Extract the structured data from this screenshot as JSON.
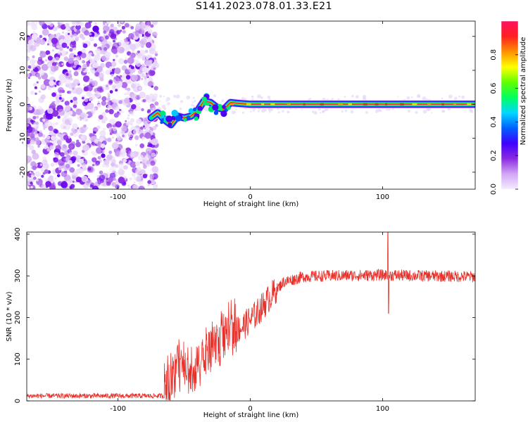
{
  "title": "S141.2023.078.01.33.E21",
  "chart_data": [
    {
      "type": "heatmap",
      "xlabel": "Height of straight line (km)",
      "ylabel": "Frequency (Hz)",
      "xlim": [
        -169,
        170
      ],
      "ylim": [
        -25,
        24.5
      ],
      "xticks": [
        -100,
        0,
        100
      ],
      "yticks": [
        -20,
        -10,
        0,
        10,
        20
      ],
      "colorbar": {
        "label": "Normalized spectral amplitude",
        "range": [
          0,
          1
        ],
        "ticks": [
          "0.0",
          "0.2",
          "0.4",
          "0.6",
          "0.8"
        ],
        "colors": [
          "#f4ecff",
          "#d2a6f5",
          "#8a2be2",
          "#3f00ff",
          "#0060ff",
          "#00d8ff",
          "#00ff60",
          "#60ff00",
          "#ffff00",
          "#ff9000",
          "#ff2020",
          "#ff1060"
        ]
      },
      "features": {
        "noise_region_x": [
          -169,
          -75
        ],
        "ridge_start_x": -75,
        "ridge": [
          {
            "x": -75,
            "f": -4
          },
          {
            "x": -70,
            "f": -2.5
          },
          {
            "x": -65,
            "f": -4.5
          },
          {
            "x": -60,
            "f": -6
          },
          {
            "x": -55,
            "f": -3.5
          },
          {
            "x": -50,
            "f": -4
          },
          {
            "x": -45,
            "f": -3.5
          },
          {
            "x": -40,
            "f": -2
          },
          {
            "x": -35,
            "f": 1
          },
          {
            "x": -30,
            "f": 0.5
          },
          {
            "x": -25,
            "f": -1
          },
          {
            "x": -20,
            "f": -1.5
          },
          {
            "x": -15,
            "f": 0.5
          },
          {
            "x": -10,
            "f": 0.3
          },
          {
            "x": 0,
            "f": 0
          },
          {
            "x": 170,
            "f": 0
          }
        ]
      }
    },
    {
      "type": "line",
      "xlabel": "Height of straight line (km)",
      "ylabel": "SNR (10 * v/v)",
      "xlim": [
        -169,
        170
      ],
      "ylim": [
        0,
        405
      ],
      "xticks": [
        -100,
        0,
        100
      ],
      "yticks": [
        0,
        100,
        200,
        300,
        400
      ],
      "color": "#e8302a",
      "trend": [
        {
          "x": -169,
          "y": 12
        },
        {
          "x": -65,
          "y": 12
        },
        {
          "x": -60,
          "y": 40
        },
        {
          "x": -55,
          "y": 80
        },
        {
          "x": -45,
          "y": 60
        },
        {
          "x": -35,
          "y": 100
        },
        {
          "x": -25,
          "y": 130
        },
        {
          "x": -15,
          "y": 160
        },
        {
          "x": -5,
          "y": 180
        },
        {
          "x": 5,
          "y": 210
        },
        {
          "x": 15,
          "y": 250
        },
        {
          "x": 25,
          "y": 285
        },
        {
          "x": 40,
          "y": 298
        },
        {
          "x": 60,
          "y": 300
        },
        {
          "x": 100,
          "y": 302
        },
        {
          "x": 130,
          "y": 300
        },
        {
          "x": 170,
          "y": 298
        }
      ],
      "spike": {
        "x": 104,
        "peak": 405,
        "trough": 210
      }
    }
  ]
}
